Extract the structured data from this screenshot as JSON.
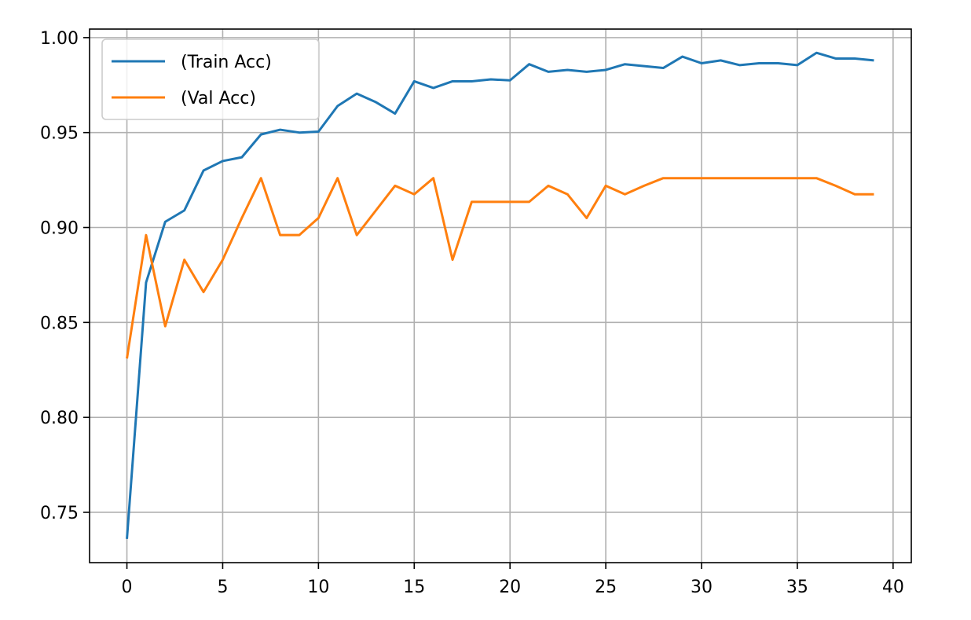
{
  "chart_data": {
    "type": "line",
    "title": "",
    "xlabel": "",
    "ylabel": "",
    "xlim": [
      -1.95,
      40.95
    ],
    "ylim": [
      0.7235,
      1.0045
    ],
    "xticks": [
      0,
      5,
      10,
      15,
      20,
      25,
      30,
      35,
      40
    ],
    "xtick_labels": [
      "0",
      "5",
      "10",
      "15",
      "20",
      "25",
      "30",
      "35",
      "40"
    ],
    "yticks": [
      0.75,
      0.8,
      0.85,
      0.9,
      0.95,
      1.0
    ],
    "ytick_labels": [
      "0.75",
      "0.80",
      "0.85",
      "0.90",
      "0.95",
      "1.00"
    ],
    "grid": true,
    "legend_position": "upper left",
    "x": [
      0,
      1,
      2,
      3,
      4,
      5,
      6,
      7,
      8,
      9,
      10,
      11,
      12,
      13,
      14,
      15,
      16,
      17,
      18,
      19,
      20,
      21,
      22,
      23,
      24,
      25,
      26,
      27,
      28,
      29,
      30,
      31,
      32,
      33,
      34,
      35,
      36,
      37,
      38,
      39
    ],
    "series": [
      {
        "name": "(Train Acc)",
        "color": "#1f77b4",
        "values": [
          0.736,
          0.871,
          0.903,
          0.909,
          0.93,
          0.935,
          0.937,
          0.949,
          0.9515,
          0.95,
          0.9505,
          0.964,
          0.9705,
          0.966,
          0.96,
          0.977,
          0.9735,
          0.977,
          0.977,
          0.978,
          0.9775,
          0.986,
          0.982,
          0.983,
          0.982,
          0.983,
          0.986,
          0.985,
          0.984,
          0.99,
          0.9865,
          0.988,
          0.9855,
          0.9865,
          0.9865,
          0.9855,
          0.992,
          0.989,
          0.989,
          0.988
        ]
      },
      {
        "name": "(Val Acc)",
        "color": "#ff7f0e",
        "values": [
          0.831,
          0.896,
          0.848,
          0.883,
          0.866,
          0.883,
          0.905,
          0.926,
          0.896,
          0.896,
          0.905,
          0.926,
          0.896,
          0.909,
          0.922,
          0.9175,
          0.926,
          0.883,
          0.9135,
          0.9135,
          0.9135,
          0.9135,
          0.922,
          0.9175,
          0.905,
          0.922,
          0.9175,
          0.922,
          0.926,
          0.926,
          0.926,
          0.926,
          0.926,
          0.926,
          0.926,
          0.926,
          0.926,
          0.922,
          0.9175,
          0.9175
        ]
      }
    ]
  }
}
